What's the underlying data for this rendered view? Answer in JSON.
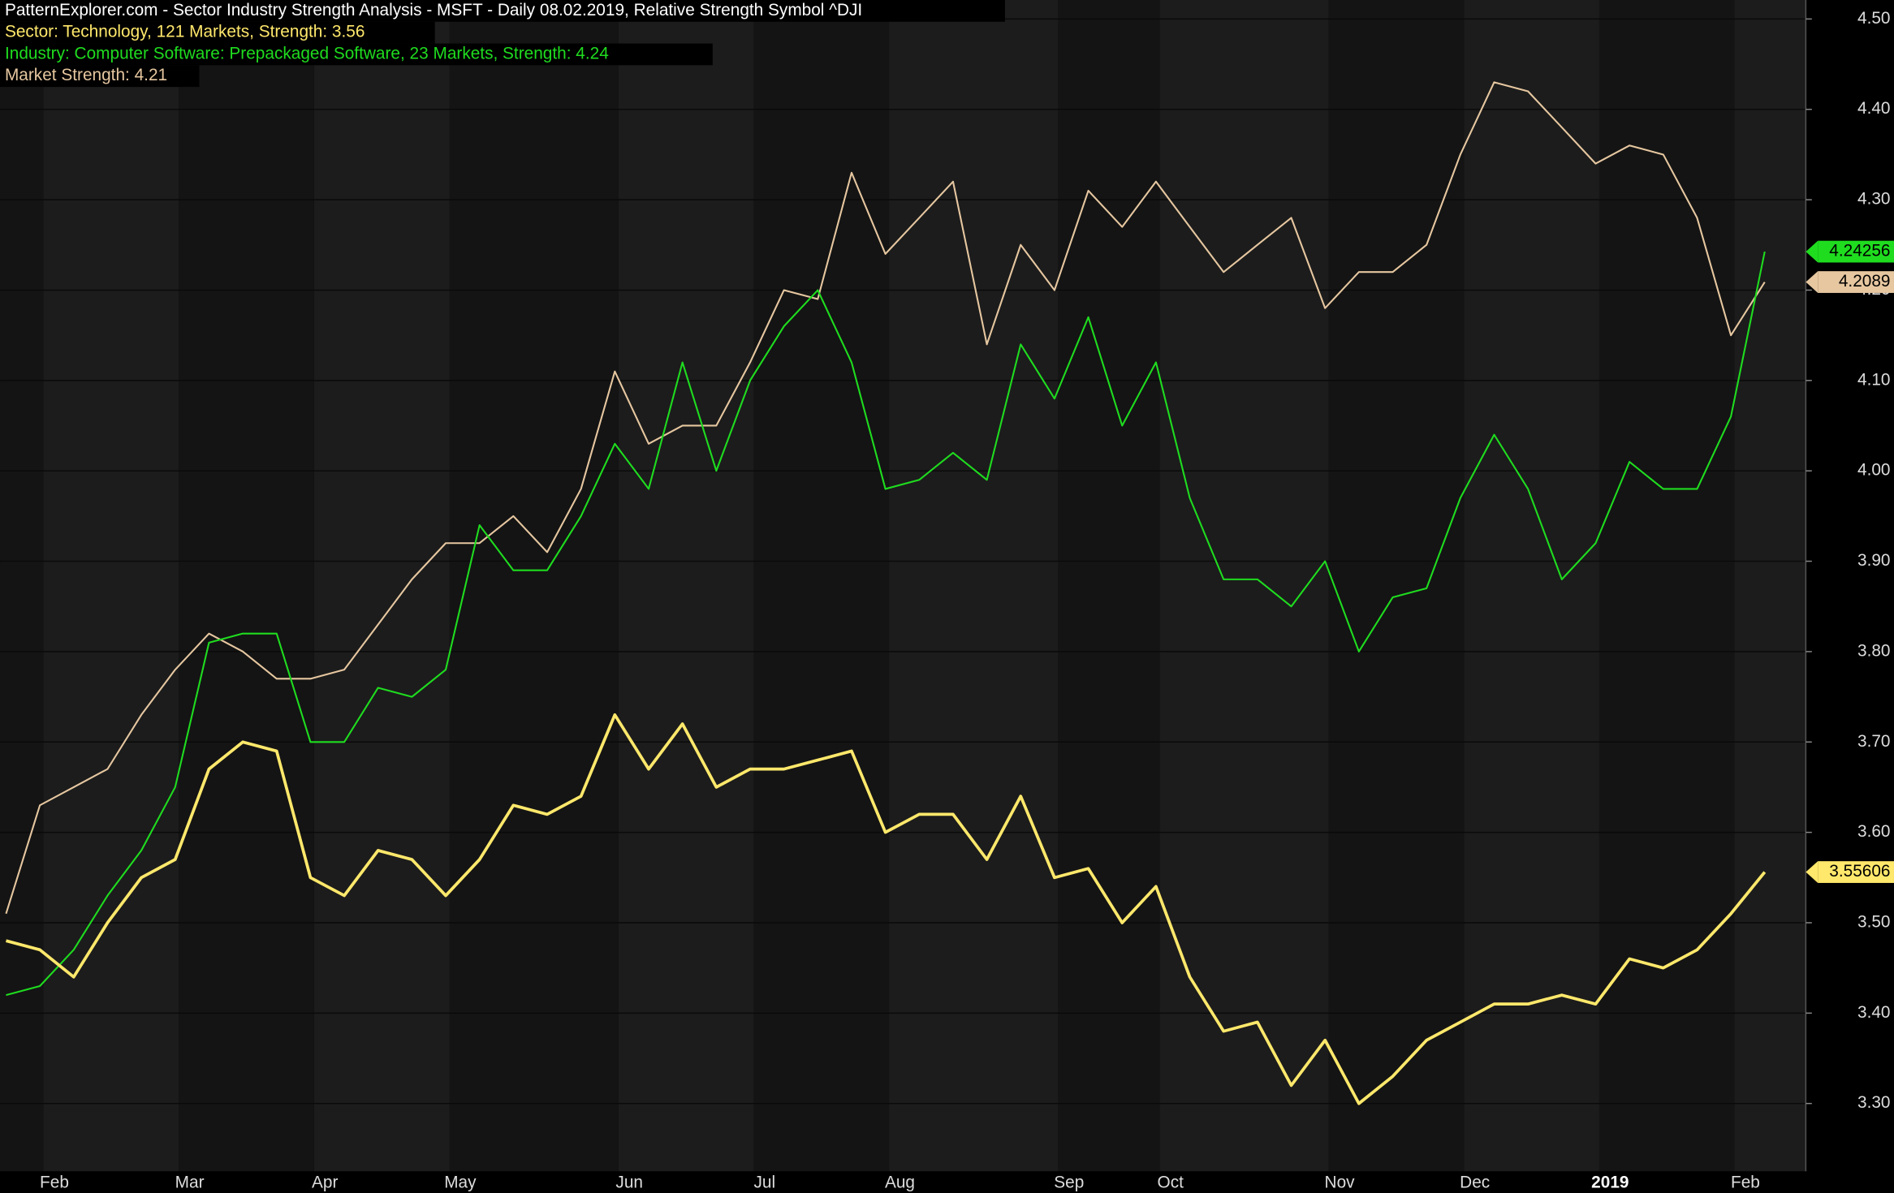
{
  "chart_data": {
    "type": "line",
    "title": "PatternExplorer.com - Sector Industry Strength Analysis - MSFT - Daily 08.02.2019, Relative Strength Symbol ^DJI",
    "categories": [
      null,
      "Feb",
      null,
      null,
      null,
      "Mar",
      null,
      null,
      null,
      "Apr",
      null,
      null,
      null,
      "May",
      null,
      null,
      null,
      null,
      "Jun",
      null,
      null,
      null,
      "Jul",
      null,
      null,
      null,
      "Aug",
      null,
      null,
      null,
      null,
      "Sep",
      null,
      null,
      "Oct",
      null,
      null,
      null,
      null,
      "Nov",
      null,
      null,
      null,
      "Dec",
      null,
      null,
      null,
      "2019",
      null,
      null,
      null,
      "Feb",
      null
    ],
    "series": [
      {
        "name": "Sector: Technology, 121 Markets, Strength: 3.56",
        "color": "#ffe86b",
        "values": [
          3.48,
          3.47,
          3.44,
          3.5,
          3.55,
          3.57,
          3.67,
          3.7,
          3.69,
          3.55,
          3.53,
          3.58,
          3.57,
          3.53,
          3.57,
          3.63,
          3.62,
          3.64,
          3.73,
          3.67,
          3.72,
          3.65,
          3.67,
          3.67,
          3.68,
          3.69,
          3.6,
          3.62,
          3.62,
          3.57,
          3.64,
          3.55,
          3.56,
          3.5,
          3.54,
          3.44,
          3.38,
          3.39,
          3.32,
          3.37,
          3.3,
          3.33,
          3.37,
          3.39,
          3.41,
          3.41,
          3.42,
          3.41,
          3.46,
          3.45,
          3.47,
          3.51,
          3.55606
        ]
      },
      {
        "name": "Industry: Computer Software: Prepackaged Software, 23 Markets, Strength: 4.24",
        "color": "#1fdc1f",
        "values": [
          3.42,
          3.43,
          3.47,
          3.53,
          3.58,
          3.65,
          3.81,
          3.82,
          3.82,
          3.7,
          3.7,
          3.76,
          3.75,
          3.78,
          3.94,
          3.89,
          3.89,
          3.95,
          4.03,
          3.98,
          4.12,
          4.0,
          4.1,
          4.16,
          4.2,
          4.12,
          3.98,
          3.99,
          4.02,
          3.99,
          4.14,
          4.08,
          4.17,
          4.05,
          4.12,
          3.97,
          3.88,
          3.88,
          3.85,
          3.9,
          3.8,
          3.86,
          3.87,
          3.97,
          4.04,
          3.98,
          3.88,
          3.92,
          4.01,
          3.98,
          3.98,
          4.06,
          4.24256
        ]
      },
      {
        "name": "Market Strength: 4.21",
        "color": "#e6c7a0",
        "values": [
          3.51,
          3.63,
          3.65,
          3.67,
          3.73,
          3.78,
          3.82,
          3.8,
          3.77,
          3.77,
          3.78,
          3.83,
          3.88,
          3.92,
          3.92,
          3.95,
          3.91,
          3.98,
          4.11,
          4.03,
          4.05,
          4.05,
          4.12,
          4.2,
          4.19,
          4.33,
          4.24,
          4.28,
          4.32,
          4.14,
          4.25,
          4.2,
          4.31,
          4.27,
          4.32,
          4.27,
          4.22,
          4.25,
          4.28,
          4.18,
          4.22,
          4.22,
          4.25,
          4.35,
          4.43,
          4.42,
          4.38,
          4.34,
          4.36,
          4.35,
          4.28,
          4.15,
          4.2089
        ]
      }
    ],
    "ylim": [
      3.225,
      4.521
    ],
    "yticks": [
      {
        "value": 3.3,
        "label": "3.30"
      },
      {
        "value": 3.4,
        "label": "3.40"
      },
      {
        "value": 3.5,
        "label": "3.50"
      },
      {
        "value": 3.6,
        "label": "3.60"
      },
      {
        "value": 3.7,
        "label": "3.70"
      },
      {
        "value": 3.8,
        "label": "3.80"
      },
      {
        "value": 3.9,
        "label": "3.90"
      },
      {
        "value": 4.0,
        "label": "4.00"
      },
      {
        "value": 4.1,
        "label": "4.10"
      },
      {
        "value": 4.2,
        "label": "4.20"
      },
      {
        "value": 4.3,
        "label": "4.30"
      },
      {
        "value": 4.4,
        "label": "4.40"
      },
      {
        "value": 4.5,
        "label": "4.50"
      }
    ],
    "grid": true
  }
}
